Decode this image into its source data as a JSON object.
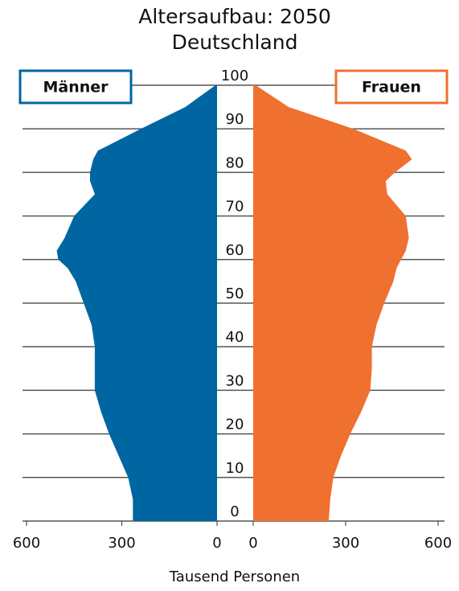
{
  "chart_data": {
    "type": "pyramid",
    "title": "Altersaufbau: 2050",
    "subtitle": "Deutschland",
    "xlabel": "Tausend Personen",
    "x": [
      0,
      5,
      10,
      15,
      20,
      25,
      30,
      35,
      40,
      45,
      50,
      55,
      58,
      60,
      62,
      65,
      70,
      75,
      78,
      80,
      83,
      85,
      90,
      95,
      100
    ],
    "series": [
      {
        "name": "Männer",
        "color": "#0066a1",
        "side": "left",
        "values": [
          265,
          265,
          280,
          310,
          340,
          365,
          385,
          385,
          385,
          395,
          420,
          445,
          470,
          500,
          505,
          480,
          450,
          385,
          400,
          400,
          390,
          375,
          240,
          100,
          5
        ]
      },
      {
        "name": "Frauen",
        "color": "#f07030",
        "side": "right",
        "values": [
          245,
          250,
          260,
          285,
          315,
          350,
          380,
          385,
          385,
          400,
          425,
          455,
          465,
          480,
          495,
          505,
          495,
          435,
          430,
          460,
          515,
          495,
          325,
          115,
          8
        ]
      }
    ],
    "xlim": [
      0,
      600
    ],
    "xticks": [
      0,
      300,
      600
    ],
    "ylim": [
      0,
      100
    ],
    "yticks": [
      0,
      10,
      20,
      30,
      40,
      50,
      60,
      70,
      80,
      90,
      100
    ],
    "grid": true
  }
}
